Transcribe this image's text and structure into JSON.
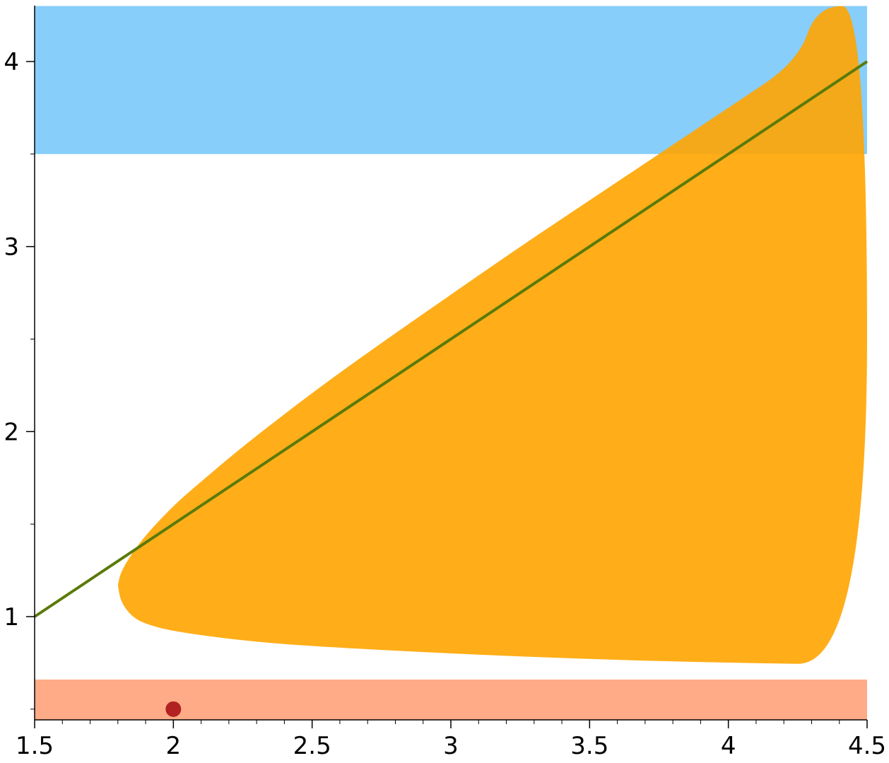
{
  "chart_data": {
    "type": "area",
    "title": "",
    "xlabel": "",
    "ylabel": "",
    "xlim": [
      1.5,
      4.5
    ],
    "ylim": [
      0.45,
      4.3
    ],
    "x_ticks": [
      1.5,
      2,
      2.5,
      3,
      3.5,
      4,
      4.5
    ],
    "x_tick_labels": [
      "1.5",
      "2",
      "2.5",
      "3",
      "3.5",
      "4",
      "4.5"
    ],
    "y_ticks": [
      1,
      2,
      3,
      4
    ],
    "y_tick_labels": [
      "1",
      "2",
      "3",
      "4"
    ],
    "x_minor_step": 0.1,
    "y_minor_step": 0.5,
    "grid": false,
    "regions": [
      {
        "kind": "horizontal-band",
        "x_range": [
          1.5,
          4.5
        ],
        "y_range": [
          3.5,
          4.3
        ],
        "color": "#87CEFA"
      },
      {
        "kind": "horizontal-band",
        "x_range": [
          1.5,
          4.5
        ],
        "y_range": [
          0.44,
          0.66
        ],
        "color": "#FFAB87"
      },
      {
        "kind": "filled-curve-region",
        "color": "#FFA500",
        "opacity": 0.9,
        "upper_boundary": [
          {
            "x": 1.8,
            "y": 1.17
          },
          {
            "x": 1.81,
            "y": 1.24
          },
          {
            "x": 1.85,
            "y": 1.34
          },
          {
            "x": 1.9,
            "y": 1.44
          },
          {
            "x": 2.0,
            "y": 1.6
          },
          {
            "x": 2.1,
            "y": 1.73
          },
          {
            "x": 2.25,
            "y": 1.92
          },
          {
            "x": 2.5,
            "y": 2.21
          },
          {
            "x": 2.75,
            "y": 2.48
          },
          {
            "x": 3.0,
            "y": 2.74
          },
          {
            "x": 3.25,
            "y": 3.0
          },
          {
            "x": 3.5,
            "y": 3.25
          },
          {
            "x": 3.75,
            "y": 3.5
          },
          {
            "x": 4.0,
            "y": 3.75
          },
          {
            "x": 4.25,
            "y": 4.0
          },
          {
            "x": 4.32,
            "y": 4.3
          },
          {
            "x": 4.5,
            "y": 4.3
          }
        ],
        "lower_boundary": [
          {
            "x": 1.8,
            "y": 1.17
          },
          {
            "x": 1.81,
            "y": 1.08
          },
          {
            "x": 1.85,
            "y": 1.0
          },
          {
            "x": 1.9,
            "y": 0.96
          },
          {
            "x": 2.0,
            "y": 0.92
          },
          {
            "x": 2.25,
            "y": 0.87
          },
          {
            "x": 2.5,
            "y": 0.84
          },
          {
            "x": 3.0,
            "y": 0.8
          },
          {
            "x": 3.5,
            "y": 0.77
          },
          {
            "x": 4.0,
            "y": 0.75
          },
          {
            "x": 4.5,
            "y": 0.74
          }
        ]
      }
    ],
    "series": [
      {
        "type": "line",
        "color": "#5A7A0A",
        "points": [
          {
            "x": 1.5,
            "y": 1.0
          },
          {
            "x": 4.5,
            "y": 4.0
          }
        ]
      },
      {
        "type": "scatter",
        "color": "#B22222",
        "points": [
          {
            "x": 2.0,
            "y": 0.5
          }
        ]
      }
    ]
  }
}
